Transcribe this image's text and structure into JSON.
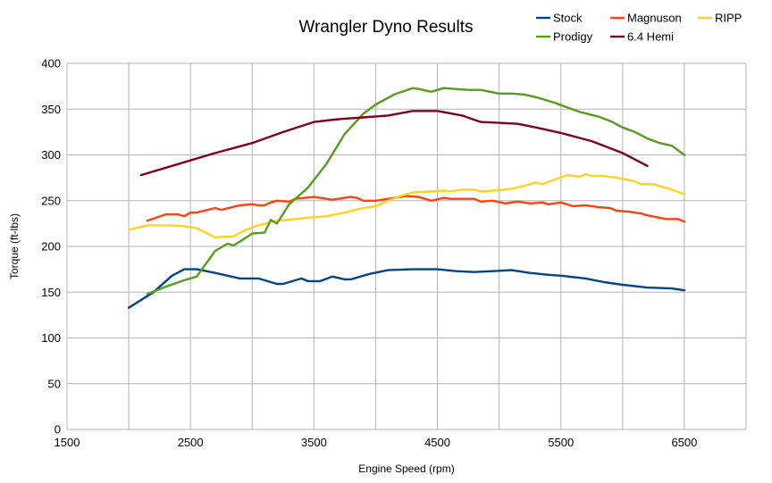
{
  "chart_data": {
    "type": "line",
    "title": "Wrangler Dyno Results",
    "xlabel": "Engine Speed (rpm)",
    "ylabel": "Torque (ft-lbs)",
    "xlim": [
      1500,
      7000
    ],
    "ylim": [
      0,
      400
    ],
    "xticks": [
      1500,
      2500,
      3500,
      4500,
      5500,
      6500
    ],
    "yticks": [
      0,
      50,
      100,
      150,
      200,
      250,
      300,
      350,
      400
    ],
    "grid": true,
    "legend_position": "top-right",
    "series": [
      {
        "name": "Stock",
        "color": "#004586",
        "points": [
          [
            2000,
            133
          ],
          [
            2200,
            150
          ],
          [
            2350,
            168
          ],
          [
            2450,
            175
          ],
          [
            2550,
            175
          ],
          [
            2700,
            171
          ],
          [
            2900,
            165
          ],
          [
            3050,
            165
          ],
          [
            3200,
            159
          ],
          [
            3250,
            159
          ],
          [
            3400,
            165
          ],
          [
            3450,
            162
          ],
          [
            3550,
            162
          ],
          [
            3650,
            167
          ],
          [
            3750,
            164
          ],
          [
            3800,
            164
          ],
          [
            3950,
            170
          ],
          [
            4100,
            174
          ],
          [
            4300,
            175
          ],
          [
            4500,
            175
          ],
          [
            4650,
            173
          ],
          [
            4800,
            172
          ],
          [
            4950,
            173
          ],
          [
            5100,
            174
          ],
          [
            5250,
            171
          ],
          [
            5400,
            169
          ],
          [
            5500,
            168
          ],
          [
            5700,
            165
          ],
          [
            5850,
            161
          ],
          [
            6000,
            158
          ],
          [
            6200,
            155
          ],
          [
            6400,
            154
          ],
          [
            6500,
            152
          ]
        ]
      },
      {
        "name": "Magnuson",
        "color": "#ff420e",
        "points": [
          [
            2150,
            228
          ],
          [
            2300,
            235
          ],
          [
            2400,
            235
          ],
          [
            2450,
            233
          ],
          [
            2500,
            237
          ],
          [
            2550,
            237
          ],
          [
            2700,
            242
          ],
          [
            2750,
            240
          ],
          [
            2900,
            245
          ],
          [
            3000,
            246
          ],
          [
            3050,
            245
          ],
          [
            3100,
            245
          ],
          [
            3150,
            248
          ],
          [
            3200,
            250
          ],
          [
            3300,
            249
          ],
          [
            3350,
            252
          ],
          [
            3500,
            254
          ],
          [
            3550,
            253
          ],
          [
            3650,
            251
          ],
          [
            3700,
            252
          ],
          [
            3800,
            254
          ],
          [
            3850,
            253
          ],
          [
            3900,
            250
          ],
          [
            4000,
            250
          ],
          [
            4100,
            252
          ],
          [
            4250,
            255
          ],
          [
            4350,
            254
          ],
          [
            4450,
            250
          ],
          [
            4550,
            253
          ],
          [
            4600,
            252
          ],
          [
            4800,
            252
          ],
          [
            4850,
            249
          ],
          [
            4950,
            250
          ],
          [
            5050,
            247
          ],
          [
            5150,
            249
          ],
          [
            5250,
            247
          ],
          [
            5350,
            248
          ],
          [
            5400,
            246
          ],
          [
            5500,
            248
          ],
          [
            5600,
            244
          ],
          [
            5700,
            245
          ],
          [
            5800,
            243
          ],
          [
            5900,
            242
          ],
          [
            5950,
            239
          ],
          [
            6050,
            238
          ],
          [
            6150,
            236
          ],
          [
            6200,
            234
          ],
          [
            6350,
            230
          ],
          [
            6450,
            230
          ],
          [
            6500,
            227
          ]
        ]
      },
      {
        "name": "RIPP",
        "color": "#ffd320",
        "points": [
          [
            2000,
            218
          ],
          [
            2150,
            223
          ],
          [
            2350,
            223
          ],
          [
            2450,
            222
          ],
          [
            2550,
            220
          ],
          [
            2700,
            210
          ],
          [
            2850,
            211
          ],
          [
            2950,
            218
          ],
          [
            3050,
            223
          ],
          [
            3200,
            228
          ],
          [
            3350,
            230
          ],
          [
            3500,
            232
          ],
          [
            3600,
            233
          ],
          [
            3750,
            237
          ],
          [
            3900,
            242
          ],
          [
            4000,
            244
          ],
          [
            4100,
            250
          ],
          [
            4200,
            255
          ],
          [
            4300,
            259
          ],
          [
            4450,
            260
          ],
          [
            4550,
            261
          ],
          [
            4600,
            260
          ],
          [
            4700,
            262
          ],
          [
            4800,
            262
          ],
          [
            4850,
            260
          ],
          [
            4950,
            261
          ],
          [
            5050,
            262
          ],
          [
            5100,
            263
          ],
          [
            5200,
            266
          ],
          [
            5300,
            270
          ],
          [
            5350,
            268
          ],
          [
            5450,
            273
          ],
          [
            5550,
            278
          ],
          [
            5650,
            276
          ],
          [
            5700,
            279
          ],
          [
            5750,
            277
          ],
          [
            5850,
            277
          ],
          [
            6000,
            274
          ],
          [
            6100,
            271
          ],
          [
            6150,
            268
          ],
          [
            6250,
            268
          ],
          [
            6400,
            262
          ],
          [
            6500,
            257
          ]
        ]
      },
      {
        "name": "Prodigy",
        "color": "#579d1c",
        "points": [
          [
            2150,
            148
          ],
          [
            2300,
            156
          ],
          [
            2450,
            163
          ],
          [
            2550,
            167
          ],
          [
            2700,
            195
          ],
          [
            2800,
            203
          ],
          [
            2850,
            201
          ],
          [
            3000,
            214
          ],
          [
            3100,
            215
          ],
          [
            3150,
            229
          ],
          [
            3200,
            225
          ],
          [
            3300,
            246
          ],
          [
            3450,
            264
          ],
          [
            3600,
            290
          ],
          [
            3750,
            323
          ],
          [
            3900,
            345
          ],
          [
            4000,
            355
          ],
          [
            4150,
            366
          ],
          [
            4300,
            373
          ],
          [
            4350,
            372
          ],
          [
            4450,
            369
          ],
          [
            4550,
            373
          ],
          [
            4650,
            372
          ],
          [
            4750,
            371
          ],
          [
            4850,
            371
          ],
          [
            5000,
            367
          ],
          [
            5100,
            367
          ],
          [
            5200,
            366
          ],
          [
            5300,
            363
          ],
          [
            5450,
            357
          ],
          [
            5550,
            352
          ],
          [
            5650,
            347
          ],
          [
            5800,
            342
          ],
          [
            5900,
            337
          ],
          [
            6000,
            330
          ],
          [
            6100,
            325
          ],
          [
            6200,
            318
          ],
          [
            6300,
            313
          ],
          [
            6400,
            310
          ],
          [
            6500,
            300
          ]
        ]
      },
      {
        "name": "6.4 Hemi",
        "color": "#7e0021",
        "points": [
          [
            2100,
            278
          ],
          [
            2450,
            292
          ],
          [
            2700,
            302
          ],
          [
            3000,
            313
          ],
          [
            3250,
            325
          ],
          [
            3500,
            336
          ],
          [
            3700,
            339
          ],
          [
            3900,
            341
          ],
          [
            4100,
            343
          ],
          [
            4300,
            348
          ],
          [
            4500,
            348
          ],
          [
            4700,
            343
          ],
          [
            4850,
            336
          ],
          [
            5000,
            335
          ],
          [
            5150,
            334
          ],
          [
            5300,
            330
          ],
          [
            5500,
            324
          ],
          [
            5750,
            315
          ],
          [
            6000,
            302
          ],
          [
            6200,
            288
          ]
        ]
      }
    ]
  }
}
